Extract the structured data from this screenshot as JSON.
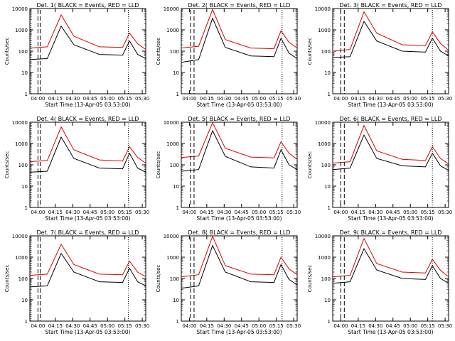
{
  "panel_title_template": "Det. {n} BLACK = Events, RED = LLD",
  "xlabel": "Start Time (13-Apr-05 03:53:00)",
  "ylabel": "Counts/sec",
  "colors": {
    "events": "#000000",
    "lld": "#dd0000",
    "axis": "#000000"
  },
  "chart_data": [
    {
      "type": "line",
      "title": "Det. 1( BLACK = Events, RED = LLD",
      "detector": 1,
      "xlabel": "Start Time (13-Apr-05 03:53:00)",
      "ylabel": "Counts/sec",
      "y_scale": "log",
      "ylim": [
        1,
        10000
      ],
      "x_ticks": [
        "04:00",
        "04:15",
        "04:30",
        "04:45",
        "05:00",
        "05:15",
        "05:30"
      ],
      "y_ticks": [
        "1",
        "10",
        "100",
        "1000",
        "10000"
      ],
      "markers": {
        "S": [
          "04:00",
          "04:02"
        ],
        "E": [
          "03:54",
          "05:18"
        ]
      },
      "series": [
        {
          "key": "events",
          "values": [
            40,
            45,
            1500,
            200,
            70,
            65,
            300,
            70,
            45
          ]
        },
        {
          "key": "lld",
          "values": [
            140,
            160,
            5000,
            500,
            160,
            150,
            700,
            220,
            120
          ]
        }
      ]
    },
    {
      "type": "line",
      "title": "Det. 2( BLACK = Events, RED = LLD",
      "detector": 2,
      "xlabel": "Start Time (13-Apr-05 03:53:00)",
      "ylabel": "Counts/sec",
      "y_scale": "log",
      "ylim": [
        1,
        10000
      ],
      "x_ticks": [
        "04:00",
        "04:15",
        "04:30",
        "04:45",
        "05:00",
        "05:15",
        "05:30"
      ],
      "y_ticks": [
        "1",
        "10",
        "100",
        "1000",
        "10000"
      ],
      "markers": {
        "S": [
          "04:01",
          "04:04"
        ],
        "E": [
          "05:20"
        ]
      },
      "series": [
        {
          "key": "events",
          "values": [
            30,
            40,
            3500,
            150,
            60,
            55,
            400,
            80,
            45
          ]
        },
        {
          "key": "lld",
          "values": [
            140,
            170,
            9000,
            350,
            140,
            130,
            900,
            260,
            140
          ]
        }
      ]
    },
    {
      "type": "line",
      "title": "Det. 3( BLACK = Events, RED = LLD",
      "detector": 3,
      "xlabel": "Start Time (13-Apr-05 03:53:00)",
      "ylabel": "Counts/sec",
      "y_scale": "log",
      "ylim": [
        1,
        10000
      ],
      "x_ticks": [
        "04:00",
        "04:15",
        "04:30",
        "04:45",
        "05:00",
        "05:15",
        "05:30"
      ],
      "y_ticks": [
        "1",
        "10",
        "100",
        "1000",
        "10000"
      ],
      "markers": {
        "S": [
          "04:00",
          "04:03"
        ],
        "E": [
          "05:19"
        ]
      },
      "series": [
        {
          "key": "events",
          "values": [
            50,
            55,
            2500,
            300,
            100,
            90,
            400,
            100,
            60
          ]
        },
        {
          "key": "lld",
          "values": [
            100,
            120,
            7000,
            700,
            200,
            180,
            800,
            230,
            110
          ]
        }
      ]
    },
    {
      "type": "line",
      "title": "Det. 4( BLACK = Events, RED = LLD",
      "detector": 4,
      "xlabel": "Start Time (13-Apr-05 03:53:00)",
      "ylabel": "Counts/sec",
      "y_scale": "log",
      "ylim": [
        1,
        10000
      ],
      "x_ticks": [
        "04:00",
        "04:15",
        "04:30",
        "04:45",
        "05:00",
        "05:15",
        "05:30"
      ],
      "y_ticks": [
        "1",
        "10",
        "100",
        "1000",
        "10000"
      ],
      "markers": {
        "S": [
          "04:00",
          "04:02"
        ],
        "E": [
          "03:54",
          "05:18"
        ]
      },
      "series": [
        {
          "key": "events",
          "values": [
            45,
            50,
            2000,
            200,
            70,
            65,
            350,
            70,
            45
          ]
        },
        {
          "key": "lld",
          "values": [
            140,
            160,
            6000,
            500,
            170,
            150,
            700,
            220,
            120
          ]
        }
      ]
    },
    {
      "type": "line",
      "title": "Det. 5( BLACK = Events, RED = LLD",
      "detector": 5,
      "xlabel": "Start Time (13-Apr-05 03:53:00)",
      "ylabel": "Counts/sec",
      "y_scale": "log",
      "ylim": [
        1,
        10000
      ],
      "x_ticks": [
        "04:00",
        "04:15",
        "04:30",
        "04:45",
        "05:00",
        "05:15",
        "05:30"
      ],
      "y_ticks": [
        "1",
        "10",
        "100",
        "1000",
        "10000"
      ],
      "markers": {
        "S": [
          "04:01",
          "04:04"
        ],
        "E": [
          "05:20"
        ]
      },
      "series": [
        {
          "key": "events",
          "values": [
            50,
            60,
            4000,
            250,
            80,
            70,
            500,
            100,
            60
          ]
        },
        {
          "key": "lld",
          "values": [
            220,
            260,
            9500,
            600,
            230,
            210,
            1200,
            350,
            180
          ]
        }
      ]
    },
    {
      "type": "line",
      "title": "Det. 6( BLACK = Events, RED = LLD",
      "detector": 6,
      "xlabel": "Start Time (13-Apr-05 03:53:00)",
      "ylabel": "Counts/sec",
      "y_scale": "log",
      "ylim": [
        1,
        10000
      ],
      "x_ticks": [
        "04:00",
        "04:15",
        "04:30",
        "04:45",
        "05:00",
        "05:15",
        "05:30"
      ],
      "y_ticks": [
        "1",
        "10",
        "100",
        "1000",
        "10000"
      ],
      "markers": {
        "S": [
          "04:00",
          "04:03"
        ],
        "E": [
          "05:19"
        ]
      },
      "series": [
        {
          "key": "events",
          "values": [
            60,
            70,
            2500,
            200,
            90,
            80,
            350,
            90,
            55
          ]
        },
        {
          "key": "lld",
          "values": [
            120,
            140,
            7000,
            450,
            180,
            160,
            700,
            200,
            110
          ]
        }
      ]
    },
    {
      "type": "line",
      "title": "Det. 7( BLACK = Events, RED = LLD",
      "detector": 7,
      "xlabel": "Start Time (13-Apr-05 03:53:00)",
      "ylabel": "Counts/sec",
      "y_scale": "log",
      "ylim": [
        1,
        10000
      ],
      "x_ticks": [
        "04:00",
        "04:15",
        "04:30",
        "04:45",
        "05:00",
        "05:15",
        "05:30"
      ],
      "y_ticks": [
        "1",
        "10",
        "100",
        "1000",
        "10000"
      ],
      "markers": {
        "S": [
          "04:00",
          "04:02"
        ],
        "E": [
          "03:54",
          "05:18"
        ]
      },
      "series": [
        {
          "key": "events",
          "values": [
            40,
            45,
            1500,
            200,
            70,
            65,
            300,
            70,
            45
          ]
        },
        {
          "key": "lld",
          "values": [
            140,
            160,
            4000,
            450,
            160,
            150,
            650,
            200,
            120
          ]
        }
      ]
    },
    {
      "type": "line",
      "title": "Det. 8( BLACK = Events, RED = LLD",
      "detector": 8,
      "xlabel": "Start Time (13-Apr-05 03:53:00)",
      "ylabel": "Counts/sec",
      "y_scale": "log",
      "ylim": [
        1,
        10000
      ],
      "x_ticks": [
        "04:00",
        "04:15",
        "04:30",
        "04:45",
        "05:00",
        "05:15",
        "05:30"
      ],
      "y_ticks": [
        "1",
        "10",
        "100",
        "1000",
        "10000"
      ],
      "markers": {
        "S": [
          "04:01",
          "04:04"
        ],
        "E": [
          "05:20"
        ]
      },
      "series": [
        {
          "key": "events",
          "values": [
            35,
            45,
            3500,
            200,
            70,
            65,
            450,
            90,
            50
          ]
        },
        {
          "key": "lld",
          "values": [
            120,
            150,
            9500,
            400,
            160,
            150,
            1000,
            280,
            150
          ]
        }
      ]
    },
    {
      "type": "line",
      "title": "Det. 9( BLACK = Events, RED = LLD",
      "detector": 9,
      "xlabel": "Start Time (13-Apr-05 03:53:00)",
      "ylabel": "Counts/sec",
      "y_scale": "log",
      "ylim": [
        1,
        10000
      ],
      "x_ticks": [
        "04:00",
        "04:15",
        "04:30",
        "04:45",
        "05:00",
        "05:15",
        "05:30"
      ],
      "y_ticks": [
        "1",
        "10",
        "100",
        "1000",
        "10000"
      ],
      "markers": {
        "S": [
          "04:00",
          "04:03"
        ],
        "E": [
          "05:19"
        ]
      },
      "series": [
        {
          "key": "events",
          "values": [
            60,
            70,
            2500,
            250,
            100,
            90,
            400,
            100,
            60
          ]
        },
        {
          "key": "lld",
          "values": [
            120,
            140,
            7500,
            500,
            200,
            180,
            800,
            240,
            120
          ]
        }
      ]
    }
  ]
}
